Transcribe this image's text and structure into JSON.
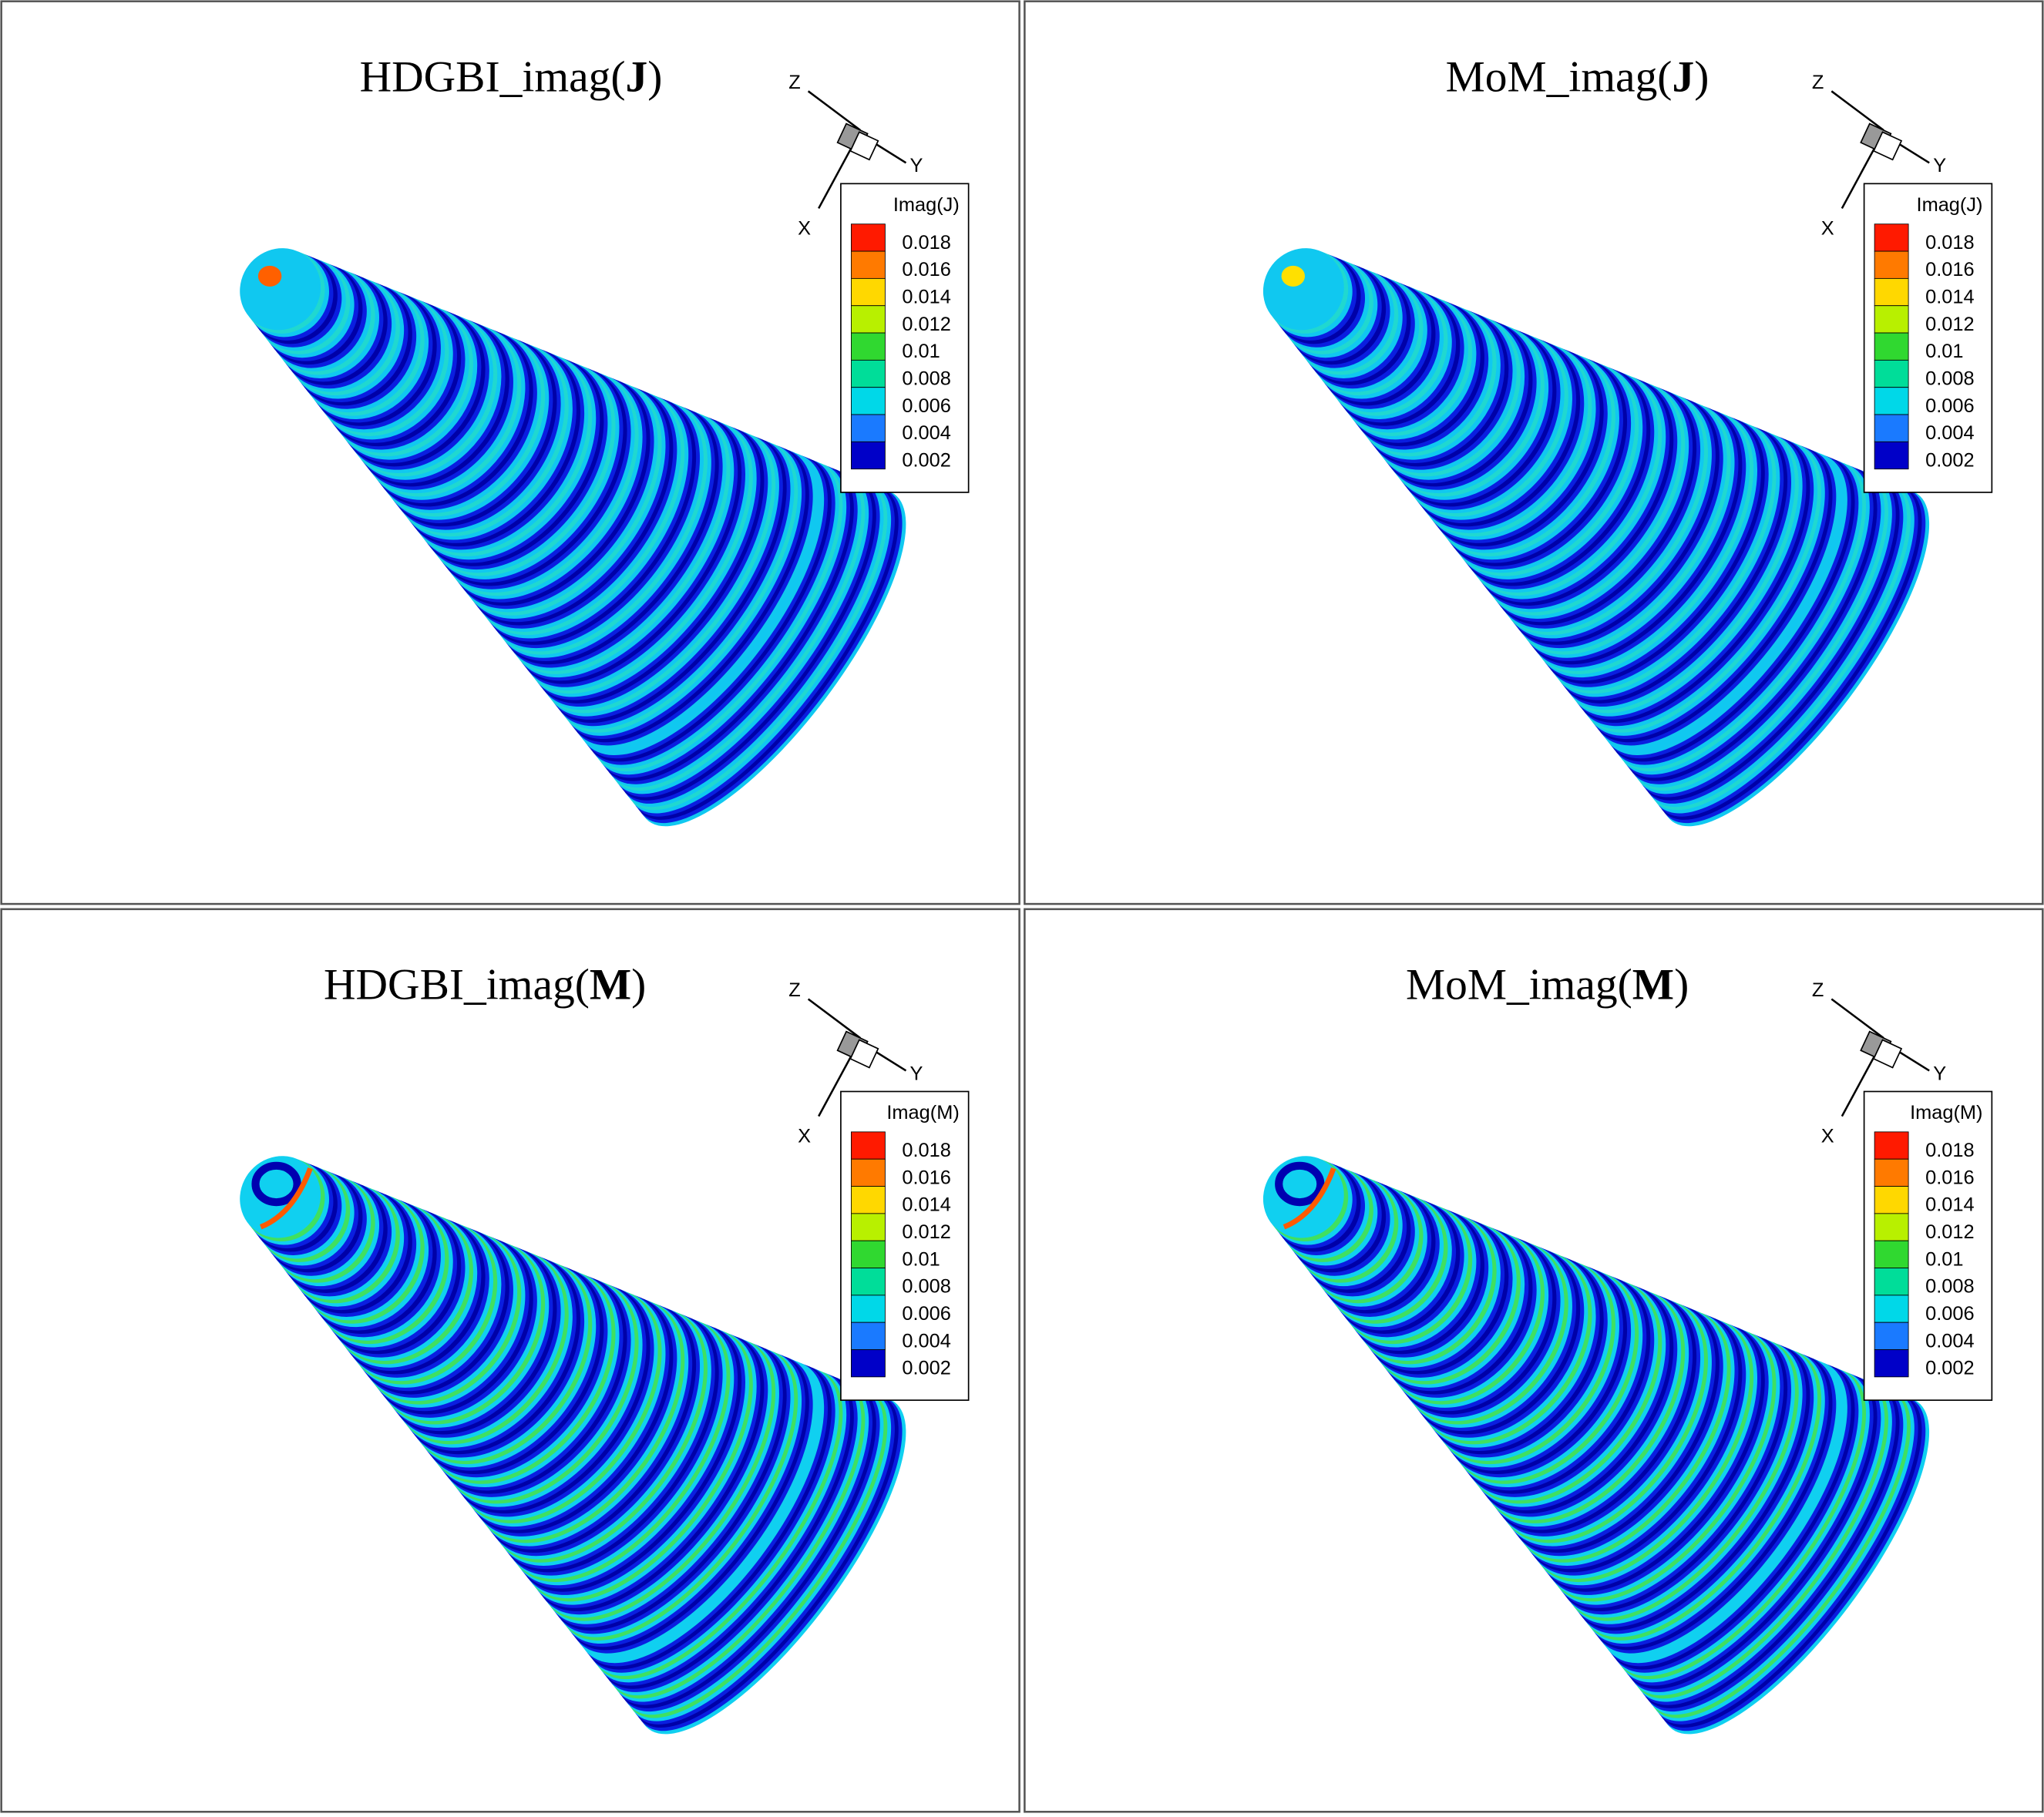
{
  "panels": [
    {
      "title": {
        "prefix": "HDGBI_imag(",
        "bold": "J",
        "suffix": ")"
      },
      "legend": {
        "title": "Imag(J)",
        "labels": [
          0.018,
          0.016,
          0.014,
          0.012,
          0.01,
          0.008,
          0.006,
          0.004,
          0.002
        ]
      },
      "axes": {
        "x": "X",
        "y": "Y",
        "z": "Z"
      }
    },
    {
      "title": {
        "prefix": "MoM_imag(",
        "bold": "J",
        "suffix": ")"
      },
      "legend": {
        "title": "Imag(J)",
        "labels": [
          0.018,
          0.016,
          0.014,
          0.012,
          0.01,
          0.008,
          0.006,
          0.004,
          0.002
        ]
      },
      "axes": {
        "x": "X",
        "y": "Y",
        "z": "Z"
      }
    },
    {
      "title": {
        "prefix": "HDGBI_imag(",
        "bold": "M",
        "suffix": ")"
      },
      "legend": {
        "title": "Imag(M)",
        "labels": [
          0.018,
          0.016,
          0.014,
          0.012,
          0.01,
          0.008,
          0.006,
          0.004,
          0.002
        ]
      },
      "axes": {
        "x": "X",
        "y": "Y",
        "z": "Z"
      }
    },
    {
      "title": {
        "prefix": "MoM_imag(",
        "bold": "M",
        "suffix": ")"
      },
      "legend": {
        "title": "Imag(M)",
        "labels": [
          0.018,
          0.016,
          0.014,
          0.012,
          0.01,
          0.008,
          0.006,
          0.004,
          0.002
        ]
      },
      "axes": {
        "x": "X",
        "y": "Y",
        "z": "Z"
      }
    }
  ]
}
